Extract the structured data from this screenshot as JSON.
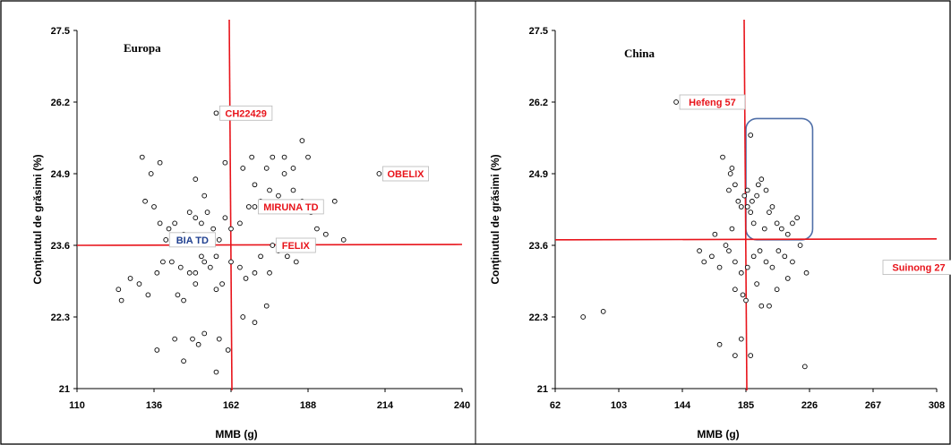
{
  "chart_data": [
    {
      "type": "scatter",
      "title": "Europa",
      "xlabel": "MMB (g)",
      "ylabel": "Conţinutul de grăsimi (%)",
      "xlim": [
        110,
        240
      ],
      "ylim": [
        21,
        27.5
      ],
      "xticks": [
        "110",
        "136",
        "162",
        "188",
        "214",
        "240"
      ],
      "yticks": [
        "21",
        "22.3",
        "23.6",
        "24.9",
        "26.2",
        "27.5"
      ],
      "reference_lines": {
        "x": 162,
        "y": 23.6
      },
      "colors": {
        "reference": "#e8141b",
        "red_label": "#e8141b",
        "blue_label": "#1f3f8f"
      },
      "labeled_points": [
        {
          "label": "CH22429",
          "x": 157,
          "y": 26.0,
          "color": "red"
        },
        {
          "label": "OBELIX",
          "x": 212,
          "y": 24.9,
          "color": "red"
        },
        {
          "label": "MIRUNA TD",
          "x": 170,
          "y": 24.3,
          "color": "red"
        },
        {
          "label": "BIA TD",
          "x": 140,
          "y": 23.7,
          "color": "blue"
        },
        {
          "label": "FELIX",
          "x": 176,
          "y": 23.6,
          "color": "red"
        }
      ],
      "points": [
        [
          157,
          26.0
        ],
        [
          212,
          24.9
        ],
        [
          214,
          24.9
        ],
        [
          170,
          24.3
        ],
        [
          140,
          23.7
        ],
        [
          176,
          23.6
        ],
        [
          132,
          25.2
        ],
        [
          135,
          24.9
        ],
        [
          138,
          25.1
        ],
        [
          133,
          24.4
        ],
        [
          136,
          24.3
        ],
        [
          138,
          24.0
        ],
        [
          141,
          23.9
        ],
        [
          143,
          24.0
        ],
        [
          146,
          23.8
        ],
        [
          148,
          24.2
        ],
        [
          150,
          24.1
        ],
        [
          152,
          24.0
        ],
        [
          154,
          24.2
        ],
        [
          153,
          24.5
        ],
        [
          156,
          23.9
        ],
        [
          158,
          23.7
        ],
        [
          160,
          24.1
        ],
        [
          162,
          23.9
        ],
        [
          165,
          24.0
        ],
        [
          168,
          24.3
        ],
        [
          170,
          24.7
        ],
        [
          172,
          24.4
        ],
        [
          175,
          24.6
        ],
        [
          178,
          24.5
        ],
        [
          180,
          24.9
        ],
        [
          183,
          24.6
        ],
        [
          186,
          24.4
        ],
        [
          189,
          24.2
        ],
        [
          191,
          23.9
        ],
        [
          194,
          23.8
        ],
        [
          197,
          24.4
        ],
        [
          200,
          23.7
        ],
        [
          166,
          25.0
        ],
        [
          169,
          25.2
        ],
        [
          174,
          25.0
        ],
        [
          176,
          25.2
        ],
        [
          180,
          25.2
        ],
        [
          183,
          25.0
        ],
        [
          186,
          25.5
        ],
        [
          188,
          25.2
        ],
        [
          160,
          25.1
        ],
        [
          150,
          24.8
        ],
        [
          124,
          22.8
        ],
        [
          125,
          22.6
        ],
        [
          128,
          23.0
        ],
        [
          131,
          22.9
        ],
        [
          134,
          22.7
        ],
        [
          137,
          23.1
        ],
        [
          139,
          23.3
        ],
        [
          142,
          23.3
        ],
        [
          145,
          23.2
        ],
        [
          148,
          23.1
        ],
        [
          150,
          22.9
        ],
        [
          152,
          23.4
        ],
        [
          155,
          23.2
        ],
        [
          157,
          22.8
        ],
        [
          159,
          22.9
        ],
        [
          162,
          23.3
        ],
        [
          165,
          23.2
        ],
        [
          167,
          23.0
        ],
        [
          170,
          23.1
        ],
        [
          172,
          23.4
        ],
        [
          175,
          23.1
        ],
        [
          178,
          23.5
        ],
        [
          181,
          23.4
        ],
        [
          184,
          23.3
        ],
        [
          186,
          23.6
        ],
        [
          144,
          22.7
        ],
        [
          146,
          22.6
        ],
        [
          150,
          23.1
        ],
        [
          153,
          23.3
        ],
        [
          157,
          23.4
        ],
        [
          166,
          22.3
        ],
        [
          170,
          22.2
        ],
        [
          174,
          22.5
        ],
        [
          137,
          21.7
        ],
        [
          143,
          21.9
        ],
        [
          146,
          21.5
        ],
        [
          149,
          21.9
        ],
        [
          151,
          21.8
        ],
        [
          153,
          22.0
        ],
        [
          158,
          21.9
        ],
        [
          161,
          21.7
        ],
        [
          157,
          21.3
        ]
      ]
    },
    {
      "type": "scatter",
      "title": "China",
      "xlabel": "MMB (g)",
      "ylabel": "Conţinutul de grăsimi (%)",
      "xlim": [
        62,
        308
      ],
      "ylim": [
        21,
        27.5
      ],
      "xticks": [
        "62",
        "103",
        "144",
        "185",
        "226",
        "267",
        "308"
      ],
      "yticks": [
        "21",
        "22.3",
        "23.6",
        "24.9",
        "26.2",
        "27.5"
      ],
      "reference_lines": {
        "x": 185,
        "y": 23.7
      },
      "colors": {
        "reference": "#e8141b",
        "red_label": "#e8141b",
        "highlight_box": "#4f6fa8"
      },
      "highlight_region": {
        "x": [
          185,
          228
        ],
        "y": [
          23.7,
          25.9
        ]
      },
      "labeled_points": [
        {
          "label": "Hefeng 57",
          "x": 140,
          "y": 26.2,
          "color": "red"
        },
        {
          "label": "Suinong 27",
          "x": 290,
          "y": 23.2,
          "color": "red"
        }
      ],
      "points": [
        [
          140,
          26.2
        ],
        [
          290,
          23.2
        ],
        [
          188,
          25.6
        ],
        [
          170,
          25.2
        ],
        [
          175,
          24.9
        ],
        [
          176,
          25.0
        ],
        [
          174,
          24.6
        ],
        [
          178,
          24.7
        ],
        [
          180,
          24.4
        ],
        [
          182,
          24.3
        ],
        [
          184,
          24.5
        ],
        [
          186,
          24.6
        ],
        [
          188,
          24.2
        ],
        [
          190,
          24.0
        ],
        [
          192,
          24.5
        ],
        [
          195,
          24.8
        ],
        [
          198,
          24.6
        ],
        [
          200,
          24.2
        ],
        [
          202,
          24.3
        ],
        [
          205,
          24.0
        ],
        [
          208,
          23.9
        ],
        [
          212,
          23.8
        ],
        [
          215,
          24.0
        ],
        [
          218,
          24.1
        ],
        [
          197,
          23.9
        ],
        [
          193,
          24.7
        ],
        [
          189,
          24.4
        ],
        [
          186,
          24.3
        ],
        [
          176,
          23.9
        ],
        [
          172,
          23.6
        ],
        [
          165,
          23.8
        ],
        [
          155,
          23.5
        ],
        [
          158,
          23.3
        ],
        [
          163,
          23.4
        ],
        [
          168,
          23.2
        ],
        [
          174,
          23.5
        ],
        [
          178,
          23.3
        ],
        [
          182,
          23.1
        ],
        [
          186,
          23.2
        ],
        [
          190,
          23.4
        ],
        [
          194,
          23.5
        ],
        [
          198,
          23.3
        ],
        [
          202,
          23.2
        ],
        [
          206,
          23.5
        ],
        [
          210,
          23.4
        ],
        [
          215,
          23.3
        ],
        [
          220,
          23.6
        ],
        [
          224,
          23.1
        ],
        [
          212,
          23.0
        ],
        [
          205,
          22.8
        ],
        [
          200,
          22.5
        ],
        [
          185,
          22.6
        ],
        [
          178,
          22.8
        ],
        [
          183,
          22.7
        ],
        [
          192,
          22.9
        ],
        [
          80,
          22.3
        ],
        [
          93,
          22.4
        ],
        [
          168,
          21.8
        ],
        [
          178,
          21.6
        ],
        [
          182,
          21.9
        ],
        [
          188,
          21.6
        ],
        [
          223,
          21.4
        ],
        [
          195,
          22.5
        ]
      ]
    }
  ]
}
